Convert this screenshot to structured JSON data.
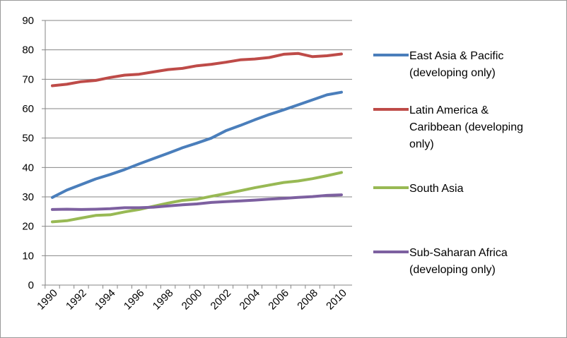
{
  "chart_data": {
    "type": "line",
    "title": "",
    "xlabel": "",
    "ylabel": "",
    "ylim": [
      0,
      90
    ],
    "yticks": [
      0,
      10,
      20,
      30,
      40,
      50,
      60,
      70,
      80,
      90
    ],
    "x": [
      1990,
      1991,
      1992,
      1993,
      1994,
      1995,
      1996,
      1997,
      1998,
      1999,
      2000,
      2001,
      2002,
      2003,
      2004,
      2005,
      2006,
      2007,
      2008,
      2009,
      2010
    ],
    "xtick_labels": [
      "1990",
      "1992",
      "1994",
      "1996",
      "1998",
      "2000",
      "2002",
      "2004",
      "2006",
      "2008",
      "2010"
    ],
    "grid": true,
    "legend_position": "right",
    "series": [
      {
        "name": "East Asia & Pacific (developing only)",
        "legend_lines": [
          "East Asia & Pacific",
          "(developing only)"
        ],
        "color": "#4a7ebb",
        "values": [
          29.8,
          32.3,
          34.2,
          36.1,
          37.6,
          39.3,
          41.2,
          43.0,
          44.8,
          46.7,
          48.3,
          50.0,
          52.5,
          54.3,
          56.2,
          58.0,
          59.6,
          61.3,
          63.0,
          64.7,
          65.6
        ]
      },
      {
        "name": "Latin America & Caribbean (developing only)",
        "legend_lines": [
          "Latin America &",
          "Caribbean (developing",
          "only)"
        ],
        "color": "#be4b48",
        "values": [
          67.8,
          68.3,
          69.2,
          69.6,
          70.6,
          71.4,
          71.7,
          72.5,
          73.3,
          73.7,
          74.6,
          75.1,
          75.8,
          76.6,
          76.9,
          77.4,
          78.5,
          78.8,
          77.7,
          78.0,
          78.6
        ]
      },
      {
        "name": "South Asia",
        "legend_lines": [
          "South Asia"
        ],
        "color": "#98b954",
        "values": [
          21.5,
          21.9,
          22.8,
          23.7,
          23.9,
          24.9,
          25.7,
          26.8,
          27.9,
          28.8,
          29.2,
          30.2,
          31.1,
          32.1,
          33.1,
          34.0,
          34.9,
          35.4,
          36.2,
          37.2,
          38.3
        ]
      },
      {
        "name": "Sub-Saharan Africa (developing only)",
        "legend_lines": [
          "Sub-Saharan Africa",
          "(developing only)"
        ],
        "color": "#7d60a0",
        "values": [
          25.7,
          25.8,
          25.7,
          25.8,
          26.0,
          26.3,
          26.3,
          26.5,
          26.9,
          27.3,
          27.6,
          28.1,
          28.4,
          28.6,
          28.9,
          29.2,
          29.5,
          29.8,
          30.1,
          30.5,
          30.7
        ]
      }
    ]
  }
}
